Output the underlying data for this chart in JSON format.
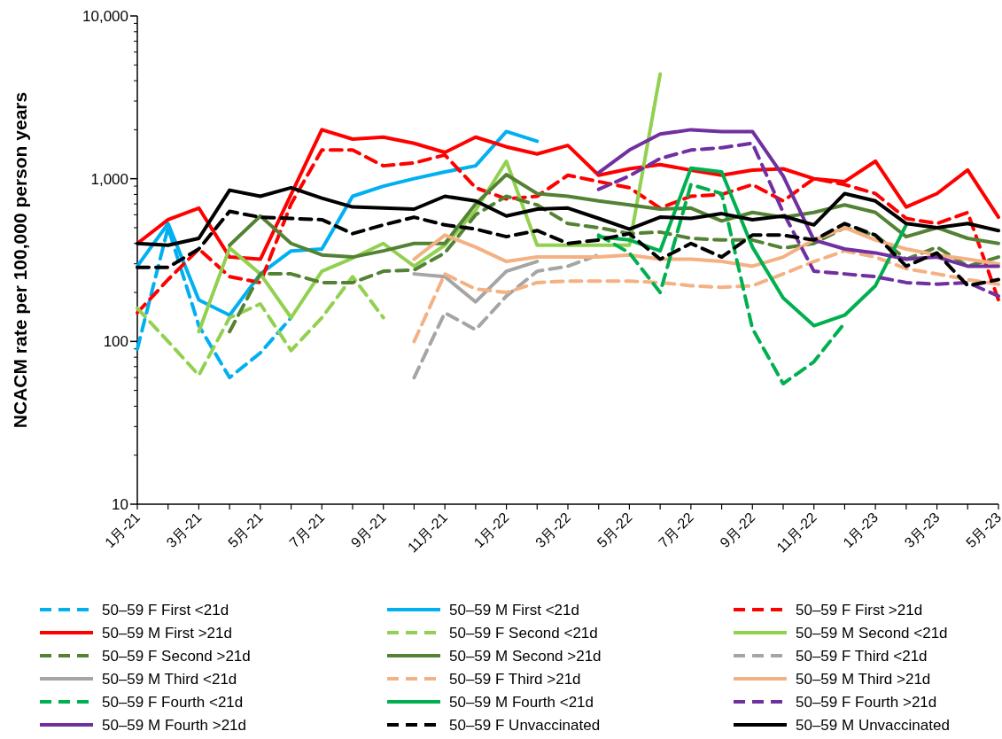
{
  "chart_data": {
    "type": "line",
    "ylabel": "NCACM rate per 100,000 person years",
    "log": "y",
    "ylim": [
      10,
      10000
    ],
    "yticks": [
      10,
      100,
      {
        "value": 1000,
        "label": "1,000"
      },
      {
        "value": 10000,
        "label": "10,000"
      }
    ],
    "grid": false,
    "legend": "bottom",
    "categories": [
      "1月-21",
      null,
      "3月-21",
      null,
      "5月-21",
      null,
      "7月-21",
      null,
      "9月-21",
      null,
      "11月-21",
      null,
      "1月-22",
      null,
      "3月-22",
      null,
      "5月-22",
      null,
      "7月-22",
      null,
      "9月-22",
      null,
      "11月-22",
      null,
      "1月-23",
      null,
      "3月-23",
      null,
      "5月-23"
    ],
    "series": [
      {
        "name": "50–59 F First <21d",
        "color": "#00b0f0",
        "line_style": "dashed",
        "values": [
          90,
          500,
          125,
          60,
          85,
          140,
          null,
          null,
          null,
          null,
          null,
          null,
          null,
          null,
          null,
          null,
          null,
          null,
          null,
          null,
          null,
          null,
          null,
          null,
          null,
          null,
          null,
          null,
          null
        ]
      },
      {
        "name": "50–59 M First <21d",
        "color": "#00b0f0",
        "line_style": "solid",
        "values": [
          290,
          530,
          180,
          145,
          260,
          360,
          370,
          780,
          900,
          1000,
          1100,
          1200,
          1950,
          1700,
          null,
          null,
          null,
          null,
          null,
          null,
          null,
          null,
          null,
          null,
          null,
          null,
          null,
          null,
          null
        ]
      },
      {
        "name": "50–59 F First >21d",
        "color": "#ff0000",
        "line_style": "dashed",
        "values": [
          150,
          240,
          370,
          250,
          230,
          700,
          1500,
          1500,
          1200,
          1250,
          1400,
          880,
          750,
          780,
          1050,
          960,
          880,
          660,
          780,
          800,
          920,
          730,
          1000,
          920,
          810,
          570,
          530,
          620,
          180
        ]
      },
      {
        "name": "50–59 M First >21d",
        "color": "#ff0000",
        "line_style": "solid",
        "values": [
          400,
          560,
          660,
          330,
          320,
          800,
          2000,
          1750,
          1800,
          1650,
          1450,
          1800,
          1570,
          1420,
          1600,
          1050,
          1150,
          1220,
          1130,
          1050,
          1130,
          1150,
          1000,
          960,
          1280,
          670,
          810,
          1130,
          580
        ]
      },
      {
        "name": "50–59 F Second <21d",
        "color": "#92d050",
        "line_style": "dashed",
        "values": [
          160,
          100,
          62,
          140,
          170,
          88,
          140,
          250,
          140,
          null,
          null,
          null,
          null,
          null,
          null,
          null,
          null,
          null,
          null,
          null,
          null,
          null,
          null,
          null,
          null,
          null,
          null,
          null,
          null
        ]
      },
      {
        "name": "50–59 M Second <21d",
        "color": "#92d050",
        "line_style": "solid",
        "values": [
          null,
          null,
          115,
          375,
          260,
          140,
          270,
          325,
          400,
          290,
          390,
          640,
          1280,
          390,
          390,
          390,
          390,
          4400,
          null,
          null,
          null,
          null,
          null,
          null,
          null,
          null,
          null,
          null,
          null
        ]
      },
      {
        "name": "50–59 F Second >21d",
        "color": "#548235",
        "line_style": "dashed",
        "values": [
          null,
          null,
          null,
          115,
          260,
          260,
          230,
          230,
          270,
          275,
          350,
          600,
          780,
          690,
          530,
          500,
          460,
          470,
          430,
          420,
          420,
          375,
          400,
          500,
          450,
          320,
          380,
          290,
          330
        ]
      },
      {
        "name": "50–59 M Second >21d",
        "color": "#548235",
        "line_style": "solid",
        "values": [
          null,
          null,
          null,
          390,
          590,
          400,
          340,
          330,
          360,
          400,
          400,
          700,
          1060,
          810,
          780,
          730,
          690,
          650,
          660,
          550,
          620,
          580,
          620,
          690,
          620,
          440,
          500,
          430,
          400
        ]
      },
      {
        "name": "50–59 F Third <21d",
        "color": "#a5a5a5",
        "line_style": "dashed",
        "values": [
          null,
          null,
          null,
          null,
          null,
          null,
          null,
          null,
          null,
          60,
          150,
          118,
          190,
          270,
          290,
          340,
          null,
          null,
          null,
          null,
          null,
          null,
          null,
          null,
          null,
          null,
          null,
          null,
          null
        ]
      },
      {
        "name": "50–59 M Third <21d",
        "color": "#a5a5a5",
        "line_style": "solid",
        "values": [
          null,
          null,
          null,
          null,
          null,
          null,
          null,
          null,
          null,
          260,
          250,
          175,
          270,
          310,
          null,
          null,
          null,
          null,
          null,
          null,
          null,
          null,
          null,
          null,
          null,
          null,
          null,
          null,
          null
        ]
      },
      {
        "name": "50–59 F Third >21d",
        "color": "#f4b183",
        "line_style": "dashed",
        "values": [
          null,
          null,
          null,
          null,
          null,
          null,
          null,
          null,
          null,
          100,
          260,
          210,
          200,
          230,
          235,
          235,
          235,
          230,
          220,
          215,
          220,
          260,
          310,
          360,
          330,
          280,
          260,
          240,
          225
        ]
      },
      {
        "name": "50–59 M Third >21d",
        "color": "#f4b183",
        "line_style": "solid",
        "values": [
          null,
          null,
          null,
          null,
          null,
          null,
          null,
          null,
          null,
          320,
          450,
          380,
          310,
          330,
          330,
          330,
          340,
          320,
          320,
          310,
          290,
          330,
          420,
          500,
          420,
          370,
          340,
          320,
          300
        ]
      },
      {
        "name": "50–59 F Fourth <21d",
        "color": "#00b050",
        "line_style": "dashed",
        "values": [
          null,
          null,
          null,
          null,
          null,
          null,
          null,
          null,
          null,
          null,
          null,
          null,
          null,
          null,
          null,
          450,
          350,
          200,
          920,
          810,
          120,
          55,
          75,
          130,
          null,
          null,
          null,
          null,
          null
        ]
      },
      {
        "name": "50–59 M Fourth <21d",
        "color": "#00b050",
        "line_style": "solid",
        "values": [
          null,
          null,
          null,
          null,
          null,
          null,
          null,
          null,
          null,
          null,
          null,
          null,
          null,
          null,
          null,
          440,
          420,
          360,
          1160,
          1100,
          380,
          185,
          125,
          145,
          220,
          520,
          null,
          null,
          null
        ]
      },
      {
        "name": "50–59 F Fourth >21d",
        "color": "#7030a0",
        "line_style": "dashed",
        "values": [
          null,
          null,
          null,
          null,
          null,
          null,
          null,
          null,
          null,
          null,
          null,
          null,
          null,
          null,
          null,
          860,
          1040,
          1330,
          1500,
          1550,
          1650,
          620,
          270,
          260,
          250,
          230,
          225,
          230,
          190
        ]
      },
      {
        "name": "50–59 M Fourth >21d",
        "color": "#7030a0",
        "line_style": "solid",
        "values": [
          null,
          null,
          null,
          null,
          null,
          null,
          null,
          null,
          null,
          null,
          null,
          null,
          null,
          null,
          null,
          1090,
          1500,
          1880,
          2000,
          1950,
          1950,
          1040,
          420,
          370,
          350,
          320,
          330,
          290,
          290
        ]
      },
      {
        "name": "50–59 F Unvaccinated",
        "color": "#000000",
        "line_style": "dashed",
        "values": [
          285,
          285,
          370,
          630,
          580,
          570,
          560,
          460,
          520,
          580,
          520,
          490,
          440,
          480,
          400,
          420,
          460,
          320,
          400,
          330,
          450,
          450,
          420,
          530,
          450,
          290,
          350,
          220,
          240
        ]
      },
      {
        "name": "50–59 M Unvaccinated",
        "color": "#000000",
        "line_style": "solid",
        "values": [
          400,
          390,
          430,
          850,
          780,
          880,
          760,
          670,
          660,
          650,
          780,
          730,
          590,
          650,
          660,
          570,
          490,
          580,
          570,
          610,
          560,
          590,
          520,
          810,
          730,
          530,
          500,
          530,
          480
        ]
      }
    ]
  }
}
